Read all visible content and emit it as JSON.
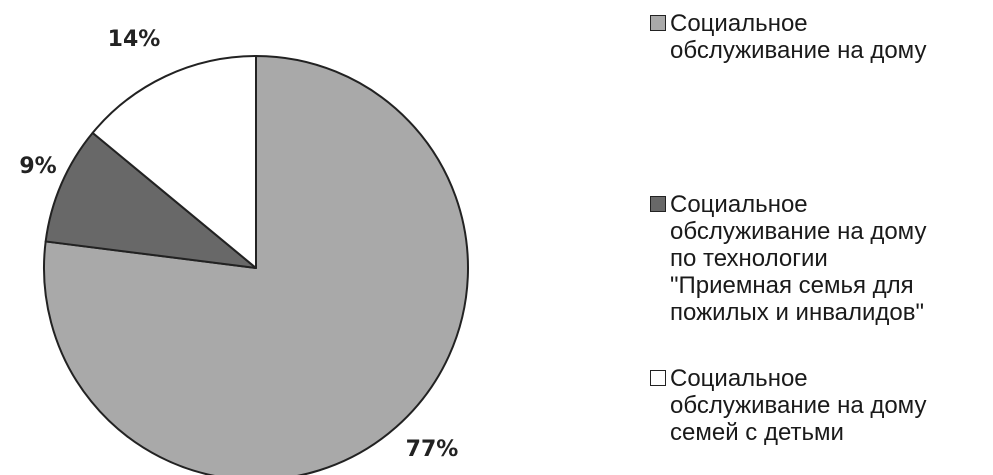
{
  "chart_data": {
    "type": "pie",
    "title": "",
    "series": [
      {
        "values": [
          77,
          9,
          14
        ],
        "labels": [
          "77%",
          "9%",
          "14%"
        ]
      }
    ],
    "categories": [
      "Социальное\nобслуживание на дому",
      "Социальное\nобслуживание на дому\nпо технологии\n\"Приемная семья для\nпожилых и инвалидов\"",
      "Социальное\nобслуживание на дому\nсемей с детьми"
    ],
    "colors": [
      "#a9a9a9",
      "#686868",
      "#ffffff"
    ],
    "start_angle_deg": 0,
    "direction": "clockwise",
    "legend": {
      "position": "right"
    }
  }
}
